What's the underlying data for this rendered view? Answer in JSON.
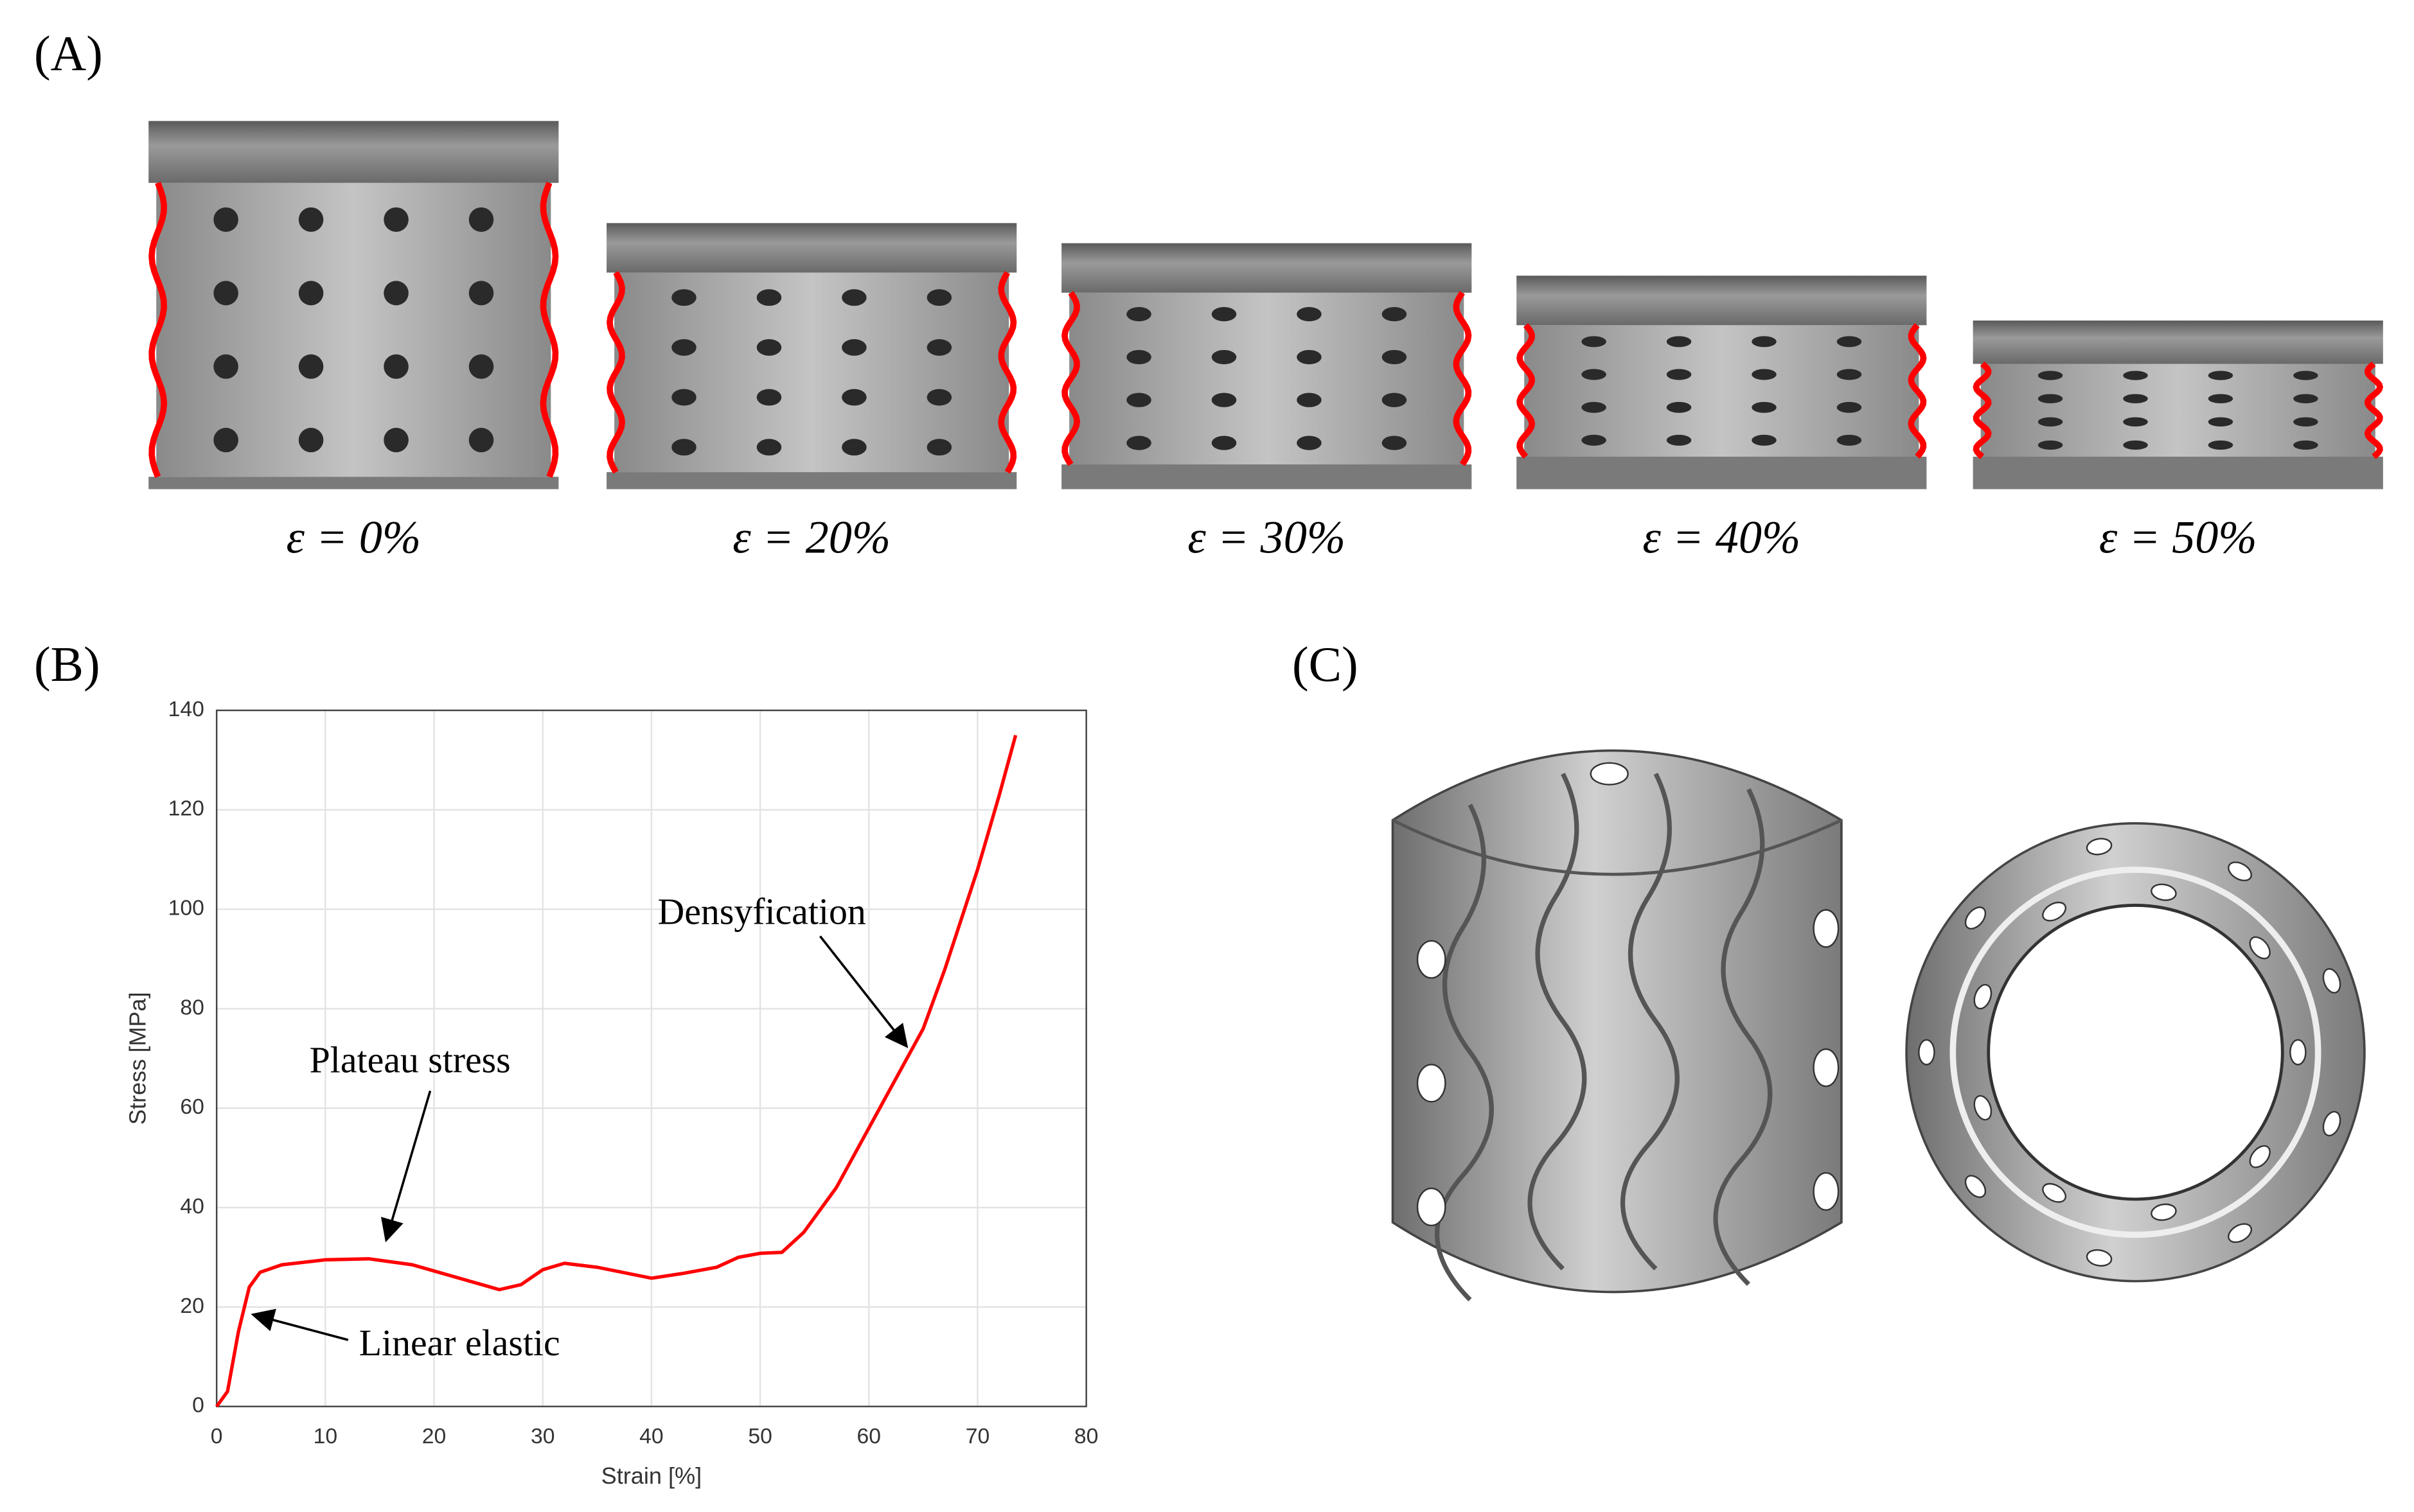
{
  "panel_labels": [
    "(A)",
    "(B)",
    "(C)"
  ],
  "strain_captions": [
    "ε = 0%",
    "ε = 20%",
    "ε = 30%",
    "ε = 40%",
    "ε = 50%"
  ],
  "chart_data": {
    "type": "line",
    "x_label": "Strain [%]",
    "y_label": "Stress [MPa]",
    "x": [
      0,
      1,
      2,
      3,
      4,
      6,
      10,
      14,
      18,
      22,
      26,
      28,
      30,
      32,
      35,
      40,
      43,
      46,
      48,
      50,
      52,
      54,
      57,
      60,
      63,
      65,
      67,
      70,
      72,
      73.5
    ],
    "values": [
      0,
      3,
      15,
      24,
      27,
      28.5,
      29.5,
      29.7,
      28.5,
      26,
      23.5,
      24.5,
      27.5,
      28.8,
      28,
      25.8,
      26.8,
      28,
      30,
      30.8,
      31,
      35,
      44,
      56,
      68,
      76,
      88,
      108,
      123,
      135
    ],
    "color": "#ff0000",
    "xlim": [
      0,
      80
    ],
    "xticks": [
      0,
      10,
      20,
      30,
      40,
      50,
      60,
      70,
      80
    ],
    "ylim": [
      0,
      140
    ],
    "yticks": [
      0,
      20,
      40,
      60,
      80,
      100,
      120,
      140
    ],
    "grid": true,
    "annotations": [
      "Densyfication",
      "Plateau stress",
      "Linear elastic"
    ]
  }
}
